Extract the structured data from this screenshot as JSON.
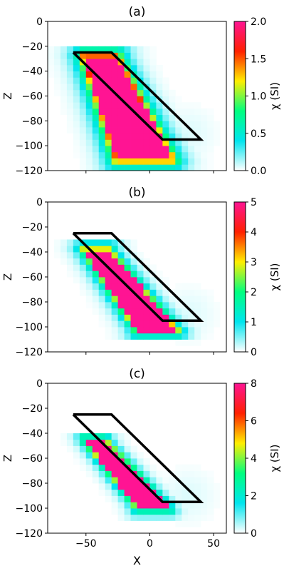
{
  "chart_data": [
    {
      "type": "heatmap",
      "title": "(a)",
      "xlabel": "",
      "ylabel": "Z",
      "xlim": [
        -80,
        60
      ],
      "ylim": [
        -120,
        0
      ],
      "xticks": [
        -50,
        0,
        50
      ],
      "xtick_labels": [
        "",
        "",
        ""
      ],
      "yticks": [
        0,
        -20,
        -40,
        -60,
        -80,
        -100,
        -120
      ],
      "ytick_labels": [
        "0",
        "−20",
        "−40",
        "−60",
        "−80",
        "−100",
        "−120"
      ],
      "colorbar": {
        "label": "χ (SI)",
        "range": [
          0,
          2
        ],
        "ticks": [
          0,
          0.5,
          1,
          1.5,
          2
        ],
        "tick_labels": [
          "0.0",
          "0.5",
          "1.0",
          "1.5",
          "2.0"
        ],
        "colormap": [
          "#ffffff",
          "#00e5ee",
          "#00ff7f",
          "#ffee00",
          "#ff2000",
          "#ff1493"
        ]
      },
      "true_body": {
        "x": [
          -60,
          -30,
          40,
          10,
          -60
        ],
        "z": [
          -25,
          -25,
          -95,
          -95,
          -25
        ]
      },
      "anomaly": {
        "z_top": -28,
        "z_bottom": -111,
        "x_left_top": -52,
        "x_right_top": -26,
        "x_left_bottom": -26,
        "x_right_bottom": 18,
        "peak": 2.0,
        "halo": 1.6,
        "halo_decay": 6
      }
    },
    {
      "type": "heatmap",
      "title": "(b)",
      "xlabel": "",
      "ylabel": "Z",
      "xlim": [
        -80,
        60
      ],
      "ylim": [
        -120,
        0
      ],
      "xticks": [
        -50,
        0,
        50
      ],
      "xtick_labels": [
        "",
        "",
        ""
      ],
      "yticks": [
        0,
        -20,
        -40,
        -60,
        -80,
        -100,
        -120
      ],
      "ytick_labels": [
        "0",
        "−20",
        "−40",
        "−60",
        "−80",
        "−100",
        "−120"
      ],
      "colorbar": {
        "label": "χ (SI)",
        "range": [
          0,
          5
        ],
        "ticks": [
          0,
          1,
          2,
          3,
          4,
          5
        ],
        "tick_labels": [
          "0",
          "1",
          "2",
          "3",
          "4",
          "5"
        ],
        "colormap": [
          "#ffffff",
          "#00e5ee",
          "#00ff7f",
          "#ffee00",
          "#ff2000",
          "#ff1493"
        ]
      },
      "true_body": {
        "x": [
          -60,
          -30,
          40,
          10,
          -60
        ],
        "z": [
          -25,
          -25,
          -95,
          -95,
          -25
        ]
      },
      "anomaly": {
        "z_top": -38,
        "z_bottom": -103,
        "x_left_top": -52,
        "x_right_top": -32,
        "x_left_bottom": -10,
        "x_right_bottom": 22,
        "peak": 5.0,
        "halo": 3.2,
        "halo_decay": 5
      }
    },
    {
      "type": "heatmap",
      "title": "(c)",
      "xlabel": "X",
      "ylabel": "Z",
      "xlim": [
        -80,
        60
      ],
      "ylim": [
        -120,
        0
      ],
      "xticks": [
        -50,
        0,
        50
      ],
      "xtick_labels": [
        "−50",
        "0",
        "50"
      ],
      "yticks": [
        0,
        -20,
        -40,
        -60,
        -80,
        -100,
        -120
      ],
      "ytick_labels": [
        "0",
        "−20",
        "−40",
        "−60",
        "−80",
        "−100",
        "−120"
      ],
      "colorbar": {
        "label": "χ (SI)",
        "range": [
          0,
          8
        ],
        "ticks": [
          0,
          2,
          4,
          6,
          8
        ],
        "tick_labels": [
          "0",
          "2",
          "4",
          "6",
          "8"
        ],
        "colormap": [
          "#ffffff",
          "#00e5ee",
          "#00ff7f",
          "#ffee00",
          "#ff2000",
          "#ff1493"
        ]
      },
      "true_body": {
        "x": [
          -60,
          -30,
          40,
          10,
          -60
        ],
        "z": [
          -25,
          -25,
          -95,
          -95,
          -25
        ]
      },
      "anomaly": {
        "z_top": -45,
        "z_bottom": -100,
        "x_left_top": -52,
        "x_right_top": -35,
        "x_left_bottom": -10,
        "x_right_bottom": 16,
        "peak": 8.0,
        "halo": 4.5,
        "halo_decay": 4
      }
    }
  ]
}
